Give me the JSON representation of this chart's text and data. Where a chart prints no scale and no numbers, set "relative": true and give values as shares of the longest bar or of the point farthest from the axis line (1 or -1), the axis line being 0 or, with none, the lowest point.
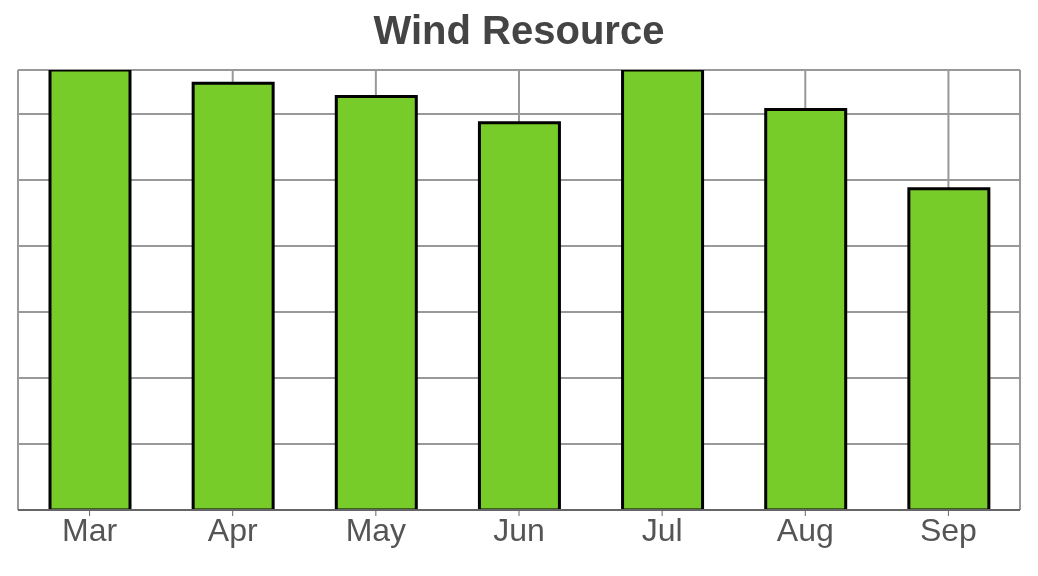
{
  "chart_data": {
    "type": "bar",
    "title": "Wind Resource",
    "categories": [
      "Mar",
      "Apr",
      "May",
      "Jun",
      "Jul",
      "Aug",
      "Sep"
    ],
    "values": [
      1.0,
      0.97,
      0.94,
      0.88,
      1.0,
      0.91,
      0.73
    ],
    "color": "#77cc2a",
    "relative": true,
    "grid": true
  }
}
